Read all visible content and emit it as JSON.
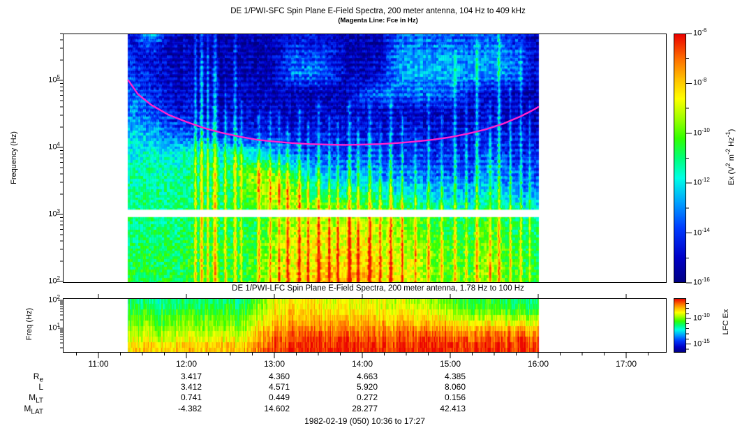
{
  "chart_data": {
    "type": "heatmap",
    "time_axis": {
      "start": "10:36",
      "end": "17:27",
      "hours": [
        11,
        12,
        13,
        14,
        15,
        16,
        17
      ],
      "hour_labels": [
        "11:00",
        "12:00",
        "13:00",
        "14:00",
        "15:00",
        "16:00",
        "17:00"
      ],
      "minor_tick_minutes": 15,
      "data_start_hour": 11.33,
      "data_end_hour": 16.0
    },
    "sfc": {
      "title": "DE 1/PWI-SFC  Spin Plane E-Field Spectra, 200 meter antenna, 104 Hz to 409 kHz",
      "subtitle": "(Magenta Line: Fce in Hz)",
      "ylabel": "Frequency (Hz)",
      "y_tick_exponents": [
        5,
        4,
        3,
        2
      ],
      "freq_range_log10": [
        2.0,
        5.7
      ],
      "gap_band_log10": [
        2.96,
        3.07
      ],
      "colorbar": {
        "label_text": "Ex (V2 m-2 Hz-1)",
        "label_segments": [
          {
            "t": "Ex (V"
          },
          {
            "sup": "2"
          },
          {
            "t": " m"
          },
          {
            "sup": "-2"
          },
          {
            "t": " Hz"
          },
          {
            "sup": "-1"
          },
          {
            "t": ")"
          }
        ],
        "tick_exponents": [
          -6,
          -8,
          -10,
          -12,
          -14,
          -16
        ],
        "range_log10": [
          -6,
          -16
        ]
      },
      "fce_line": {
        "color": "#ff22cc",
        "points_hz": [
          [
            11.34,
            100000
          ],
          [
            11.45,
            62000
          ],
          [
            11.6,
            43000
          ],
          [
            11.8,
            30500
          ],
          [
            12.0,
            24000
          ],
          [
            12.2,
            19500
          ],
          [
            12.4,
            16500
          ],
          [
            12.6,
            14500
          ],
          [
            12.8,
            13000
          ],
          [
            13.0,
            12200
          ],
          [
            13.2,
            11600
          ],
          [
            13.4,
            11200
          ],
          [
            13.6,
            11000
          ],
          [
            13.8,
            10900
          ],
          [
            14.0,
            11000
          ],
          [
            14.2,
            11200
          ],
          [
            14.4,
            11600
          ],
          [
            14.6,
            12200
          ],
          [
            14.8,
            13000
          ],
          [
            15.0,
            14200
          ],
          [
            15.2,
            16000
          ],
          [
            15.4,
            18500
          ],
          [
            15.6,
            22500
          ],
          [
            15.8,
            29000
          ],
          [
            15.95,
            36500
          ],
          [
            16.0,
            40000
          ]
        ]
      },
      "grid": {
        "times": [
          11.4,
          11.6,
          11.8,
          12.0,
          12.2,
          12.4,
          12.6,
          12.8,
          13.0,
          13.2,
          13.4,
          13.6,
          13.8,
          14.0,
          14.2,
          14.4,
          14.6,
          14.8,
          15.0,
          15.2,
          15.4,
          15.6,
          15.8,
          16.0
        ],
        "log10f": [
          2.1,
          2.4,
          2.7,
          3.0,
          3.3,
          3.6,
          3.9,
          4.2,
          4.5,
          4.8,
          5.1,
          5.35,
          5.55,
          5.7
        ],
        "log10ex_rows": [
          [
            -10.8,
            -10.6,
            -10.7,
            -10.5,
            -10.6,
            -10.4,
            -10.5,
            -10.0,
            -9.2,
            -8.8,
            -8.2,
            -7.8,
            -8.0,
            -7.7,
            -8.4,
            -8.7,
            -9.0,
            -9.6,
            -10.0,
            -10.2,
            -9.3,
            -10.0,
            -10.4,
            -10.6
          ],
          [
            -10.9,
            -10.7,
            -10.8,
            -10.6,
            -10.7,
            -10.5,
            -10.6,
            -10.2,
            -9.4,
            -9.0,
            -8.6,
            -8.4,
            -8.6,
            -8.3,
            -8.8,
            -9.0,
            -9.3,
            -9.8,
            -10.2,
            -10.4,
            -9.6,
            -10.2,
            -10.6,
            -10.8
          ],
          [
            -11.0,
            -10.9,
            -11.0,
            -10.8,
            -10.9,
            -10.7,
            -10.8,
            -10.5,
            -9.8,
            -9.3,
            -9.0,
            -8.8,
            -9.0,
            -8.8,
            -9.2,
            -9.5,
            -9.8,
            -10.2,
            -10.6,
            -10.8,
            -10.0,
            -10.6,
            -11.0,
            -11.0
          ],
          [
            -11.1,
            -11.0,
            -11.1,
            -10.9,
            -11.0,
            -10.8,
            -10.9,
            -10.7,
            -10.1,
            -9.7,
            -9.4,
            -9.4,
            -9.6,
            -9.5,
            -9.8,
            -10.0,
            -10.3,
            -10.7,
            -11.0,
            -11.2,
            -10.5,
            -11.0,
            -11.3,
            -11.3
          ],
          [
            -11.2,
            -11.1,
            -11.2,
            -11.0,
            -11.1,
            -11.0,
            -10.8,
            -9.6,
            -9.0,
            -9.4,
            -10.6,
            -11.0,
            -11.3,
            -11.2,
            -11.6,
            -11.8,
            -12.0,
            -12.3,
            -12.5,
            -12.6,
            -11.8,
            -12.4,
            -12.7,
            -12.8
          ],
          [
            -11.4,
            -11.3,
            -11.4,
            -11.2,
            -11.3,
            -11.2,
            -10.2,
            -9.4,
            -10.0,
            -11.2,
            -12.2,
            -12.6,
            -12.8,
            -12.6,
            -13.0,
            -13.2,
            -13.2,
            -13.4,
            -13.5,
            -13.6,
            -12.8,
            -13.3,
            -13.6,
            -13.6
          ],
          [
            -11.8,
            -11.7,
            -11.8,
            -11.6,
            -11.7,
            -11.8,
            -11.4,
            -12.0,
            -12.8,
            -13.4,
            -13.8,
            -14.0,
            -14.0,
            -13.8,
            -14.0,
            -14.1,
            -14.0,
            -14.2,
            -14.2,
            -14.3,
            -13.6,
            -14.0,
            -14.3,
            -14.3
          ],
          [
            -12.2,
            -12.6,
            -13.2,
            -13.6,
            -14.0,
            -14.2,
            -14.0,
            -14.4,
            -14.5,
            -14.6,
            -14.6,
            -14.5,
            -14.6,
            -14.5,
            -14.6,
            -14.6,
            -14.6,
            -14.7,
            -14.7,
            -14.7,
            -14.3,
            -14.6,
            -14.7,
            -14.7
          ],
          [
            -13.0,
            -13.6,
            -14.2,
            -14.6,
            -14.9,
            -15.0,
            -14.9,
            -15.0,
            -15.0,
            -15.1,
            -15.1,
            -15.0,
            -15.1,
            -15.0,
            -15.1,
            -15.1,
            -15.1,
            -15.2,
            -15.2,
            -15.2,
            -14.9,
            -15.1,
            -15.2,
            -15.2
          ],
          [
            -13.6,
            -14.2,
            -14.8,
            -15.0,
            -15.2,
            -15.2,
            -15.1,
            -15.2,
            -15.2,
            -15.3,
            -15.2,
            -15.3,
            -15.2,
            -13.8,
            -13.4,
            -13.4,
            -13.5,
            -13.6,
            -13.6,
            -14.6,
            -15.0,
            -15.2,
            -15.3,
            -15.3
          ],
          [
            -14.0,
            -14.6,
            -15.0,
            -15.2,
            -15.3,
            -15.3,
            -15.2,
            -15.3,
            -15.3,
            -13.4,
            -13.2,
            -13.6,
            -15.0,
            -15.2,
            -15.0,
            -12.8,
            -12.6,
            -12.6,
            -12.7,
            -12.8,
            -12.8,
            -13.0,
            -13.4,
            -15.0
          ],
          [
            -14.4,
            -14.8,
            -15.1,
            -15.3,
            -15.3,
            -15.4,
            -15.3,
            -15.4,
            -15.3,
            -13.8,
            -13.6,
            -14.0,
            -15.2,
            -15.3,
            -15.1,
            -12.9,
            -12.7,
            -12.7,
            -12.8,
            -12.9,
            -12.9,
            -13.1,
            -13.6,
            -15.1
          ],
          [
            -14.6,
            -13.6,
            -15.0,
            -15.3,
            -15.4,
            -15.4,
            -15.3,
            -15.4,
            -15.4,
            -14.4,
            -14.2,
            -14.6,
            -15.3,
            -15.4,
            -15.2,
            -13.4,
            -13.2,
            -13.2,
            -13.3,
            -13.4,
            -13.4,
            -13.6,
            -14.2,
            -15.2
          ],
          [
            -14.8,
            -11.8,
            -14.9,
            -15.2,
            -15.4,
            -15.4,
            -15.4,
            -15.4,
            -15.4,
            -14.8,
            -14.6,
            -14.9,
            -15.4,
            -15.4,
            -15.3,
            -13.8,
            -13.6,
            -13.6,
            -13.7,
            -13.8,
            -13.8,
            -14.0,
            -14.5,
            -15.3
          ]
        ]
      },
      "streaks": [
        [
          12.1,
          5.7,
          2.4,
          0.015
        ],
        [
          12.17,
          5.7,
          3.0,
          0.02
        ],
        [
          12.24,
          5.7,
          2.6,
          0.015
        ],
        [
          12.32,
          5.7,
          3.2,
          0.025
        ],
        [
          12.44,
          4.9,
          2.2,
          0.015
        ],
        [
          12.55,
          5.7,
          2.4,
          0.02
        ],
        [
          12.62,
          4.6,
          2.0,
          0.015
        ],
        [
          12.82,
          4.4,
          2.4,
          0.02
        ],
        [
          12.95,
          4.5,
          2.2,
          0.015
        ],
        [
          13.05,
          4.4,
          2.4,
          0.015
        ],
        [
          13.15,
          4.3,
          2.6,
          0.02
        ],
        [
          13.28,
          4.5,
          2.8,
          0.02
        ],
        [
          13.38,
          4.3,
          2.4,
          0.015
        ],
        [
          13.5,
          4.6,
          2.8,
          0.02
        ],
        [
          13.62,
          4.4,
          2.6,
          0.015
        ],
        [
          13.72,
          4.3,
          2.4,
          0.015
        ],
        [
          13.85,
          4.6,
          3.0,
          0.02
        ],
        [
          13.95,
          4.4,
          2.6,
          0.015
        ],
        [
          14.08,
          4.5,
          2.8,
          0.02
        ],
        [
          14.2,
          4.3,
          2.4,
          0.015
        ],
        [
          14.32,
          4.6,
          3.0,
          0.02
        ],
        [
          14.45,
          4.4,
          2.6,
          0.015
        ],
        [
          14.6,
          4.2,
          2.2,
          0.015
        ],
        [
          14.75,
          4.7,
          2.4,
          0.015
        ],
        [
          14.9,
          4.4,
          2.2,
          0.015
        ],
        [
          15.05,
          5.3,
          2.4,
          0.02
        ],
        [
          15.18,
          4.8,
          2.2,
          0.015
        ],
        [
          15.3,
          5.5,
          2.6,
          0.02
        ],
        [
          15.45,
          4.6,
          2.4,
          0.015
        ],
        [
          15.55,
          5.6,
          2.8,
          0.02
        ],
        [
          15.68,
          4.8,
          2.4,
          0.015
        ],
        [
          15.8,
          5.4,
          2.2,
          0.015
        ],
        [
          15.9,
          4.6,
          2.0,
          0.015
        ]
      ]
    },
    "lfc": {
      "title": "DE 1/PWI-LFC  Spin Plane E-Field Spectra, 200 meter antenna, 1.78 Hz to 100 Hz",
      "ylabel": "Freq (Hz)",
      "y_tick_exponents": [
        2,
        1
      ],
      "freq_range_log10": [
        0.125,
        2.075
      ],
      "colorbar": {
        "label_text": "LFC Ex",
        "tick_exponents": [
          -10,
          -15
        ],
        "range_log10": [
          -6,
          -16.7
        ]
      },
      "grid": {
        "times": [
          11.4,
          11.6,
          11.8,
          12.0,
          12.2,
          12.4,
          12.6,
          12.8,
          13.0,
          13.2,
          13.4,
          13.6,
          13.8,
          14.0,
          14.2,
          14.4,
          14.6,
          14.8,
          15.0,
          15.2,
          15.4,
          15.6,
          15.8,
          16.0
        ],
        "log10f": [
          0.35,
          0.7,
          1.05,
          1.4,
          1.7,
          1.95
        ],
        "log10ex_rows": [
          [
            -8.2,
            -8.0,
            -8.2,
            -8.0,
            -8.1,
            -7.9,
            -8.0,
            -7.2,
            -6.6,
            -6.4,
            -6.3,
            -6.3,
            -6.4,
            -6.3,
            -6.3,
            -6.4,
            -6.3,
            -6.4,
            -6.3,
            -6.4,
            -6.3,
            -6.4,
            -6.4,
            -6.4
          ],
          [
            -9.2,
            -9.0,
            -9.2,
            -9.0,
            -9.1,
            -8.9,
            -9.0,
            -7.8,
            -7.0,
            -6.8,
            -6.6,
            -6.7,
            -6.8,
            -6.6,
            -6.7,
            -6.8,
            -6.7,
            -6.8,
            -6.8,
            -6.9,
            -6.8,
            -6.9,
            -7.0,
            -7.0
          ],
          [
            -9.8,
            -9.7,
            -9.8,
            -9.6,
            -9.7,
            -9.6,
            -9.7,
            -8.4,
            -7.6,
            -7.3,
            -7.2,
            -7.4,
            -7.5,
            -7.3,
            -7.4,
            -7.6,
            -7.5,
            -7.7,
            -7.8,
            -8.0,
            -7.9,
            -8.0,
            -8.1,
            -8.1
          ],
          [
            -10.2,
            -10.1,
            -10.2,
            -10.0,
            -10.1,
            -10.0,
            -10.1,
            -9.0,
            -8.2,
            -7.9,
            -7.8,
            -8.0,
            -8.1,
            -7.9,
            -8.1,
            -8.3,
            -8.2,
            -8.5,
            -8.8,
            -9.2,
            -9.0,
            -9.3,
            -9.5,
            -9.5
          ],
          [
            -10.8,
            -10.7,
            -10.8,
            -10.6,
            -10.7,
            -10.6,
            -10.7,
            -9.6,
            -8.6,
            -8.3,
            -8.2,
            -8.5,
            -8.6,
            -8.4,
            -8.6,
            -8.8,
            -8.8,
            -9.2,
            -9.6,
            -10.2,
            -10.0,
            -10.4,
            -10.6,
            -10.6
          ],
          [
            -11.2,
            -11.1,
            -11.2,
            -11.0,
            -11.1,
            -11.0,
            -11.1,
            -10.0,
            -8.8,
            -8.5,
            -8.4,
            -8.7,
            -8.8,
            -8.6,
            -8.8,
            -9.0,
            -9.1,
            -9.6,
            -10.0,
            -10.6,
            -10.4,
            -10.8,
            -11.0,
            -11.0
          ]
        ]
      }
    },
    "ephemeris": {
      "row_label_segments": [
        [
          {
            "t": "R"
          },
          {
            "sub": "e"
          }
        ],
        [
          {
            "t": "L"
          }
        ],
        [
          {
            "t": "M"
          },
          {
            "sub": "LT"
          }
        ],
        [
          {
            "t": "M"
          },
          {
            "sub": "LAT"
          }
        ]
      ],
      "row_labels_text": [
        "Re",
        "L",
        "MLT",
        "MLAT"
      ],
      "columns": [
        "12:00",
        "13:00",
        "14:00",
        "15:00"
      ],
      "rows": [
        [
          "3.417",
          "4.360",
          "4.663",
          "4.385"
        ],
        [
          "3.412",
          "4.571",
          "5.920",
          "8.060"
        ],
        [
          "0.741",
          "0.449",
          "0.272",
          "0.156"
        ],
        [
          "-4.382",
          "14.602",
          "28.277",
          "42.413"
        ]
      ]
    },
    "footer": "1982-02-19 (050) 10:36 to 17:27",
    "colormap_stops": [
      [
        0.0,
        [
          0,
          0,
          130
        ]
      ],
      [
        0.1,
        [
          0,
          0,
          200
        ]
      ],
      [
        0.22,
        [
          0,
          60,
          255
        ]
      ],
      [
        0.32,
        [
          0,
          160,
          255
        ]
      ],
      [
        0.42,
        [
          0,
          255,
          230
        ]
      ],
      [
        0.5,
        [
          0,
          255,
          120
        ]
      ],
      [
        0.58,
        [
          50,
          255,
          0
        ]
      ],
      [
        0.66,
        [
          160,
          255,
          0
        ]
      ],
      [
        0.74,
        [
          255,
          255,
          0
        ]
      ],
      [
        0.82,
        [
          255,
          190,
          0
        ]
      ],
      [
        0.9,
        [
          255,
          110,
          0
        ]
      ],
      [
        1.0,
        [
          235,
          0,
          0
        ]
      ]
    ]
  }
}
